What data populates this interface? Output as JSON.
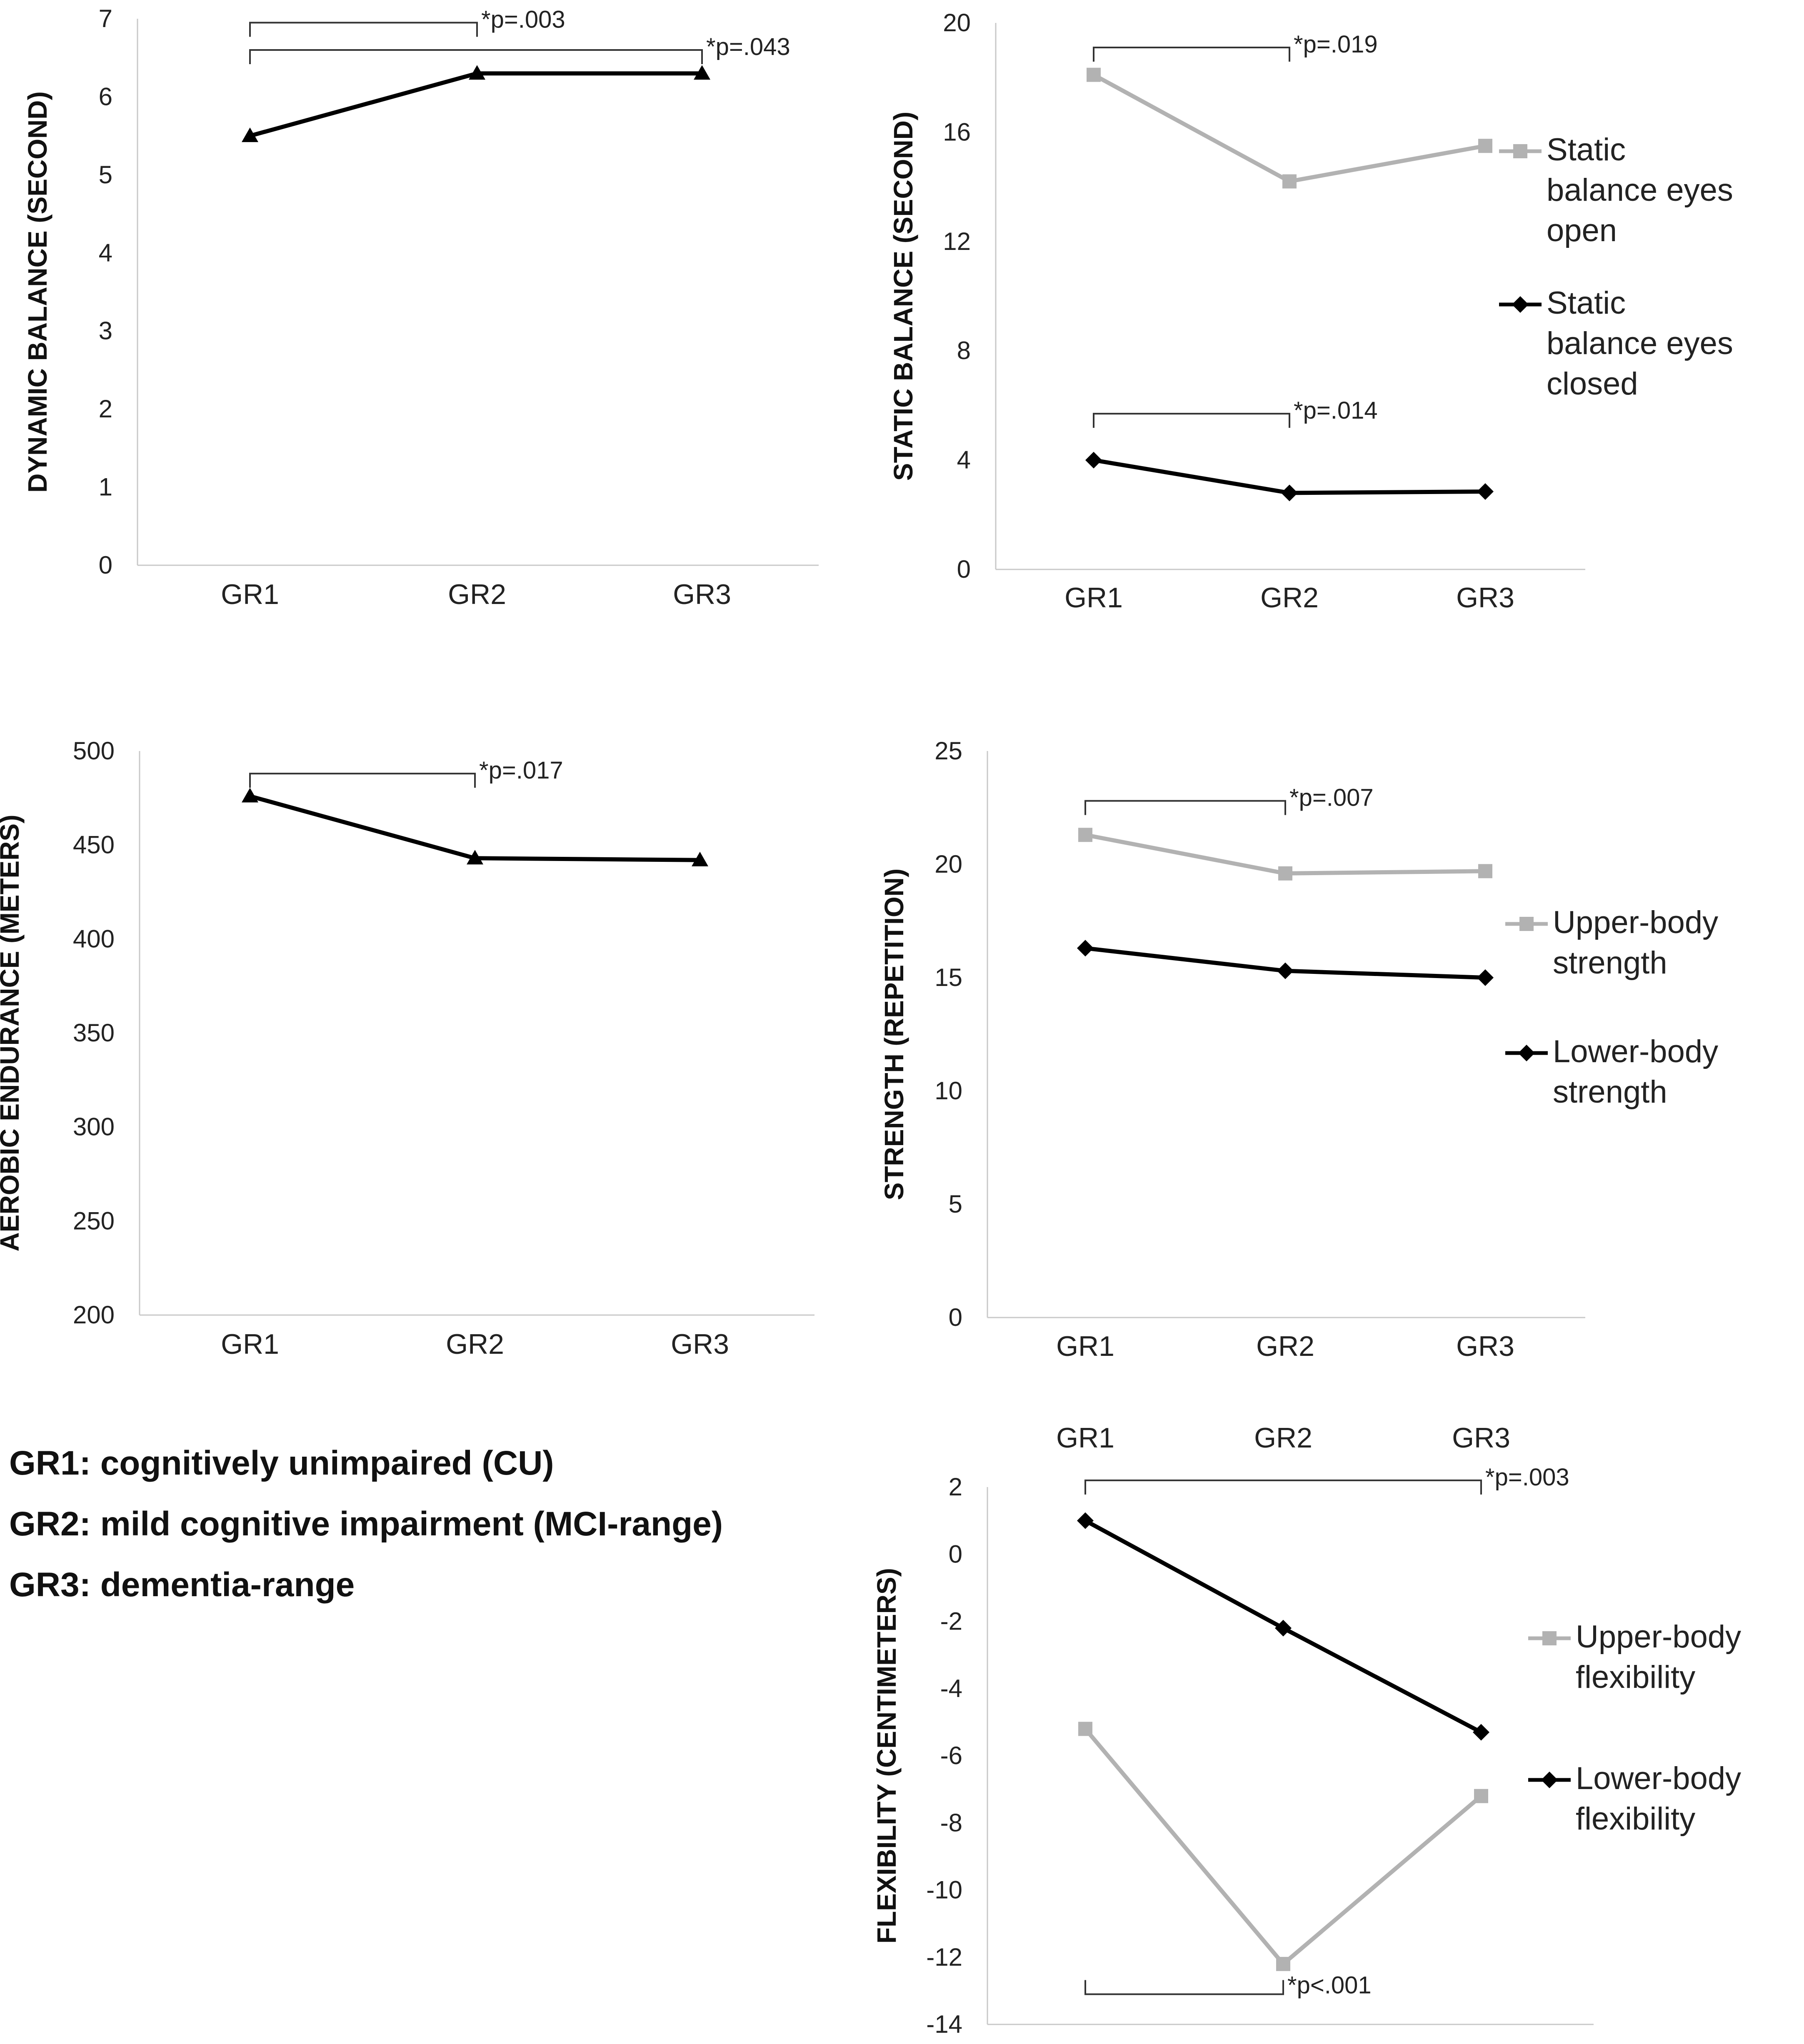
{
  "chart_data": [
    {
      "id": "dynamic",
      "type": "line",
      "ylabel": "DYNAMIC BALANCE (SECOND)",
      "categories": [
        "GR1",
        "GR2",
        "GR3"
      ],
      "ylim": [
        0,
        7
      ],
      "yticks": [
        0,
        1,
        2,
        3,
        4,
        5,
        6,
        7
      ],
      "series": [
        {
          "name": "Dynamic balance",
          "color": "#000000",
          "marker": "triangle",
          "values": [
            5.5,
            6.3,
            6.3
          ]
        }
      ],
      "significance": [
        {
          "from": 0,
          "to": 1,
          "label": "*p=.003",
          "level": 6.95,
          "dir": "down"
        },
        {
          "from": 0,
          "to": 2,
          "label": "*p=.043",
          "level": 6.6,
          "dir": "down"
        }
      ]
    },
    {
      "id": "static",
      "type": "line",
      "ylabel": "STATIC BALANCE (SECOND)",
      "categories": [
        "GR1",
        "GR2",
        "GR3"
      ],
      "ylim": [
        0,
        20
      ],
      "yticks": [
        0,
        4,
        8,
        12,
        16,
        20
      ],
      "series": [
        {
          "name": "Static balance eyes open",
          "legend_lines": [
            "Static",
            "balance eyes",
            "open"
          ],
          "color": "#b2b2b2",
          "marker": "square",
          "values": [
            18.1,
            14.2,
            15.5
          ]
        },
        {
          "name": "Static balance eyes closed",
          "legend_lines": [
            "Static",
            "balance eyes",
            "closed"
          ],
          "color": "#000000",
          "marker": "diamond",
          "values": [
            4.0,
            2.8,
            2.85
          ]
        }
      ],
      "significance": [
        {
          "from": 0,
          "to": 1,
          "label": "*p=.019",
          "level": 19.1,
          "dir": "down"
        },
        {
          "from": 0,
          "to": 1,
          "label": "*p=.014",
          "level": 5.7,
          "dir": "down"
        }
      ]
    },
    {
      "id": "aerobic",
      "type": "line",
      "ylabel": "AEROBIC ENDURANCE (METERS)",
      "categories": [
        "GR1",
        "GR2",
        "GR3"
      ],
      "ylim": [
        200,
        500
      ],
      "yticks": [
        200,
        250,
        300,
        350,
        400,
        450,
        500
      ],
      "series": [
        {
          "name": "Aerobic endurance",
          "color": "#000000",
          "marker": "triangle",
          "values": [
            476,
            443,
            442
          ]
        }
      ],
      "significance": [
        {
          "from": 0,
          "to": 1,
          "label": "*p=.017",
          "level": 488,
          "dir": "down"
        }
      ]
    },
    {
      "id": "strength",
      "type": "line",
      "ylabel": "STRENGTH (REPETITION)",
      "categories": [
        "GR1",
        "GR2",
        "GR3"
      ],
      "ylim": [
        0,
        25
      ],
      "yticks": [
        0,
        5,
        10,
        15,
        20,
        25
      ],
      "series": [
        {
          "name": "Upper-body strength",
          "legend_lines": [
            "Upper-body",
            "strength"
          ],
          "color": "#b2b2b2",
          "marker": "square",
          "values": [
            21.3,
            19.6,
            19.7
          ]
        },
        {
          "name": "Lower-body strength",
          "legend_lines": [
            "Lower-body",
            "strength"
          ],
          "color": "#000000",
          "marker": "diamond",
          "values": [
            16.3,
            15.3,
            15.0
          ]
        }
      ],
      "significance": [
        {
          "from": 0,
          "to": 1,
          "label": "*p=.007",
          "level": 22.8,
          "dir": "down"
        }
      ]
    },
    {
      "id": "flexibility",
      "type": "line",
      "ylabel": "FLEXIBILITY (CENTIMETERS)",
      "categories": [
        "GR1",
        "GR2",
        "GR3"
      ],
      "category_position": "top",
      "ylim": [
        -14,
        2
      ],
      "yticks": [
        -14,
        -12,
        -10,
        -8,
        -6,
        -4,
        -2,
        0,
        2
      ],
      "series": [
        {
          "name": "Upper-body flexibility",
          "legend_lines": [
            "Upper-body",
            "flexibility"
          ],
          "color": "#b2b2b2",
          "marker": "square",
          "values": [
            -5.2,
            -12.2,
            -7.2
          ]
        },
        {
          "name": "Lower-body flexibility",
          "legend_lines": [
            "Lower-body",
            "flexibility"
          ],
          "color": "#000000",
          "marker": "diamond",
          "values": [
            1.0,
            -2.2,
            -5.3
          ]
        }
      ],
      "significance": [
        {
          "from": 0,
          "to": 2,
          "label": "*p=.003",
          "level": 2.2,
          "dir": "down"
        },
        {
          "from": 0,
          "to": 1,
          "label": "*p<.001",
          "level": -13.1,
          "dir": "up"
        }
      ]
    }
  ],
  "notes": [
    "GR1: cognitively unimpaired (CU)",
    "GR2: mild cognitive impairment (MCI-range)",
    "GR3: dementia-range"
  ]
}
